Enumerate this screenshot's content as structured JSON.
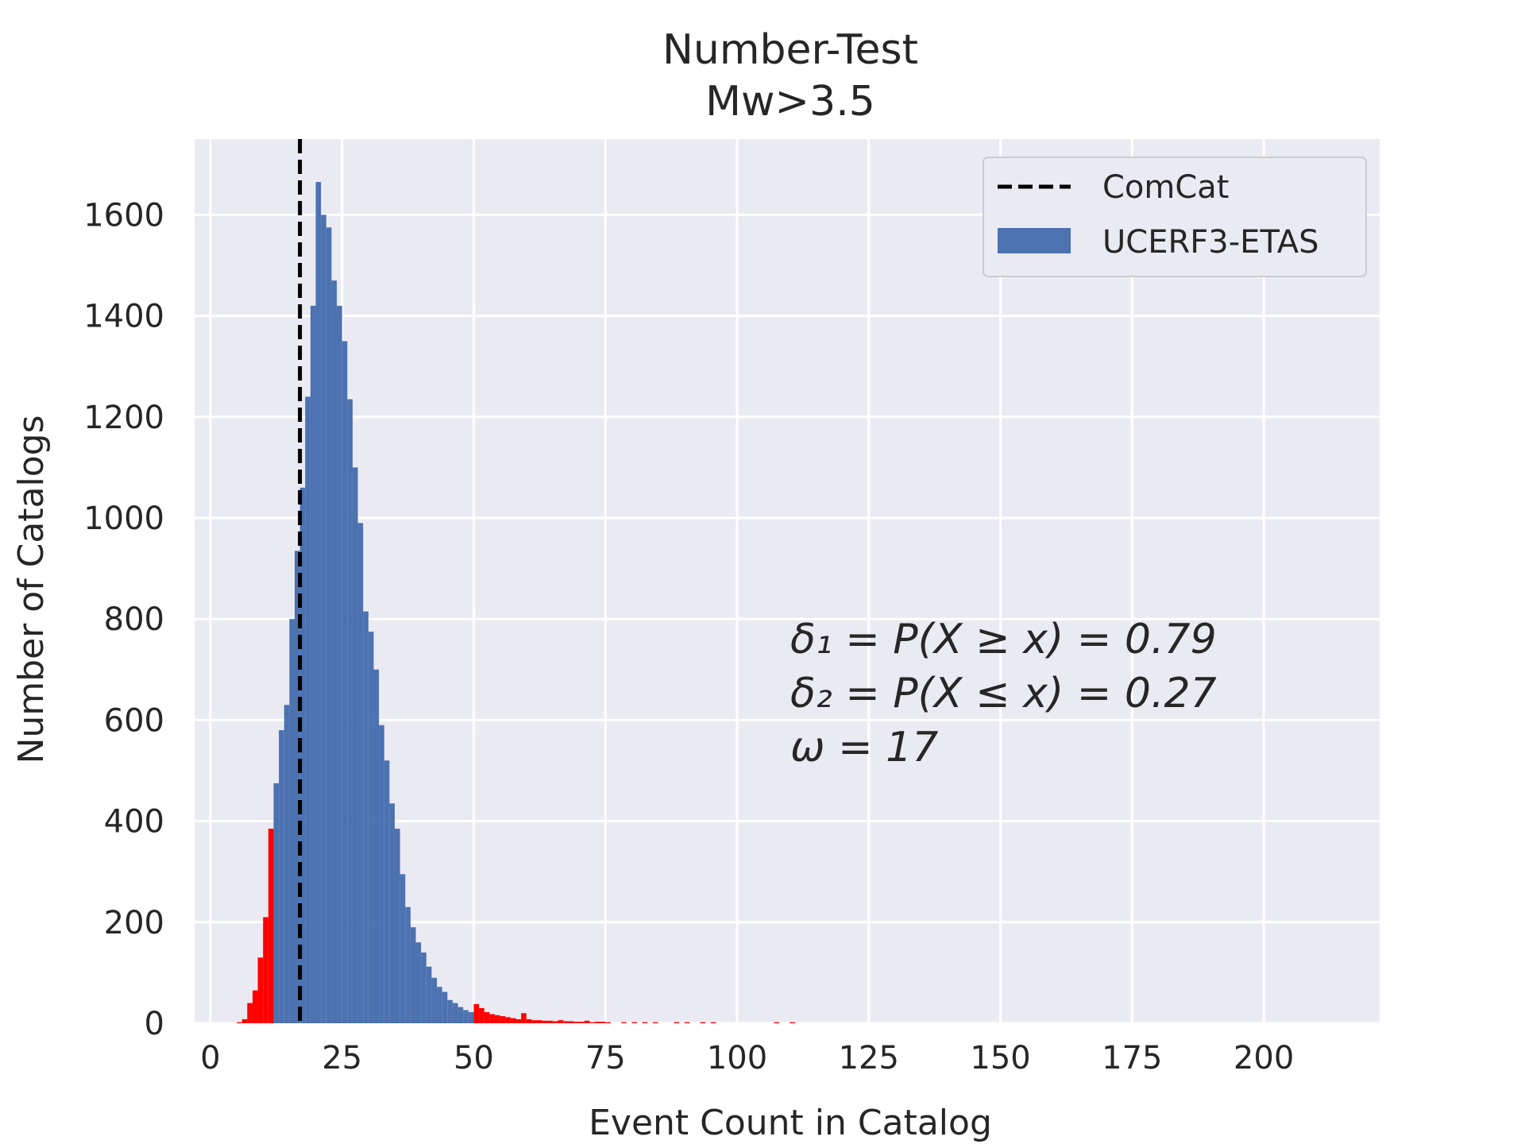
{
  "chart_data": {
    "type": "bar",
    "title": "Number-Test",
    "subtitle": "Mw>3.5",
    "xlabel": "Event Count in Catalog",
    "ylabel": "Number of Catalogs",
    "xlim": [
      -3,
      222
    ],
    "ylim": [
      0,
      1750
    ],
    "x_ticks": [
      0,
      25,
      50,
      75,
      100,
      125,
      150,
      175,
      200
    ],
    "y_ticks": [
      0,
      200,
      400,
      600,
      800,
      1000,
      1200,
      1400,
      1600
    ],
    "grid": true,
    "background_color": "#eaeaf2",
    "legend_position": "top-right",
    "series": [
      {
        "name": "UCERF3-ETAS",
        "color": "#4c72b0",
        "tail_color": "#ff0000",
        "bin_width": 1,
        "bins": [
          5,
          6,
          7,
          8,
          9,
          10,
          11,
          12,
          13,
          14,
          15,
          16,
          17,
          18,
          19,
          20,
          21,
          22,
          23,
          24,
          25,
          26,
          27,
          28,
          29,
          30,
          31,
          32,
          33,
          34,
          35,
          36,
          37,
          38,
          39,
          40,
          41,
          42,
          43,
          44,
          45,
          46,
          47,
          48,
          49,
          50,
          51,
          52,
          53,
          54,
          55,
          56,
          57,
          58,
          59,
          60,
          61,
          62,
          63,
          64,
          65,
          66,
          67,
          68,
          69,
          70,
          71,
          72,
          73,
          74,
          75,
          78,
          80,
          82,
          84,
          88,
          90,
          93,
          95,
          107,
          110
        ],
        "counts": [
          2,
          8,
          40,
          65,
          130,
          210,
          385,
          475,
          580,
          630,
          800,
          935,
          1060,
          1240,
          1420,
          1665,
          1600,
          1575,
          1470,
          1420,
          1350,
          1235,
          1100,
          990,
          815,
          775,
          700,
          590,
          520,
          435,
          385,
          295,
          230,
          190,
          160,
          140,
          112,
          90,
          72,
          62,
          46,
          40,
          32,
          26,
          22,
          38,
          30,
          22,
          18,
          16,
          14,
          12,
          10,
          8,
          20,
          8,
          6,
          6,
          5,
          5,
          4,
          6,
          4,
          4,
          3,
          3,
          5,
          2,
          3,
          3,
          2,
          2,
          2,
          2,
          2,
          2,
          2,
          2,
          2,
          2,
          2
        ],
        "highlight_tails": {
          "lower_below": 12,
          "upper_from": 50
        }
      },
      {
        "name": "ComCat",
        "type": "vline",
        "x": 17,
        "color": "#000000",
        "style": "dashed"
      }
    ],
    "annotations": [
      "δ₁ = P(X ≥ x) = 0.79",
      "δ₂ = P(X ≤ x) = 0.27",
      "ω = 17"
    ]
  }
}
